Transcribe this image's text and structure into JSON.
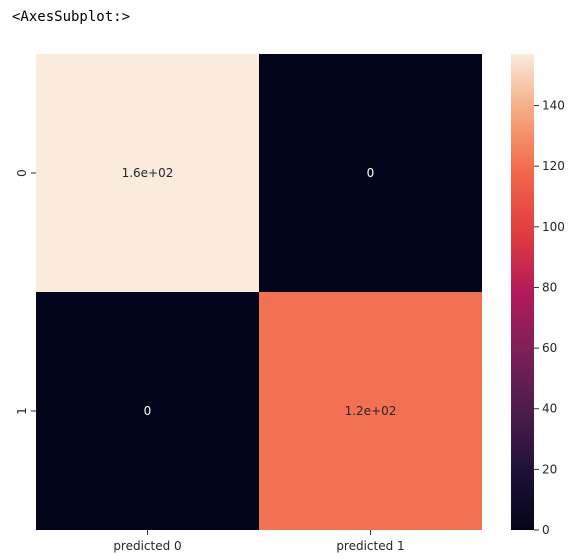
{
  "output_repr": "<AxesSubplot:>",
  "chart_data": {
    "type": "heatmap",
    "x_categories": [
      "predicted 0",
      "predicted 1"
    ],
    "y_categories": [
      "0",
      "1"
    ],
    "values": [
      [
        157,
        0
      ],
      [
        0,
        121
      ]
    ],
    "annotations": [
      [
        "1.6e+02",
        "0"
      ],
      [
        "0",
        "1.2e+02"
      ]
    ],
    "colorbar": {
      "min": 0,
      "max": 157,
      "ticks": [
        0,
        20,
        40,
        60,
        80,
        100,
        120,
        140
      ],
      "colormap": "rocket"
    },
    "grid": false,
    "legend": "right"
  }
}
